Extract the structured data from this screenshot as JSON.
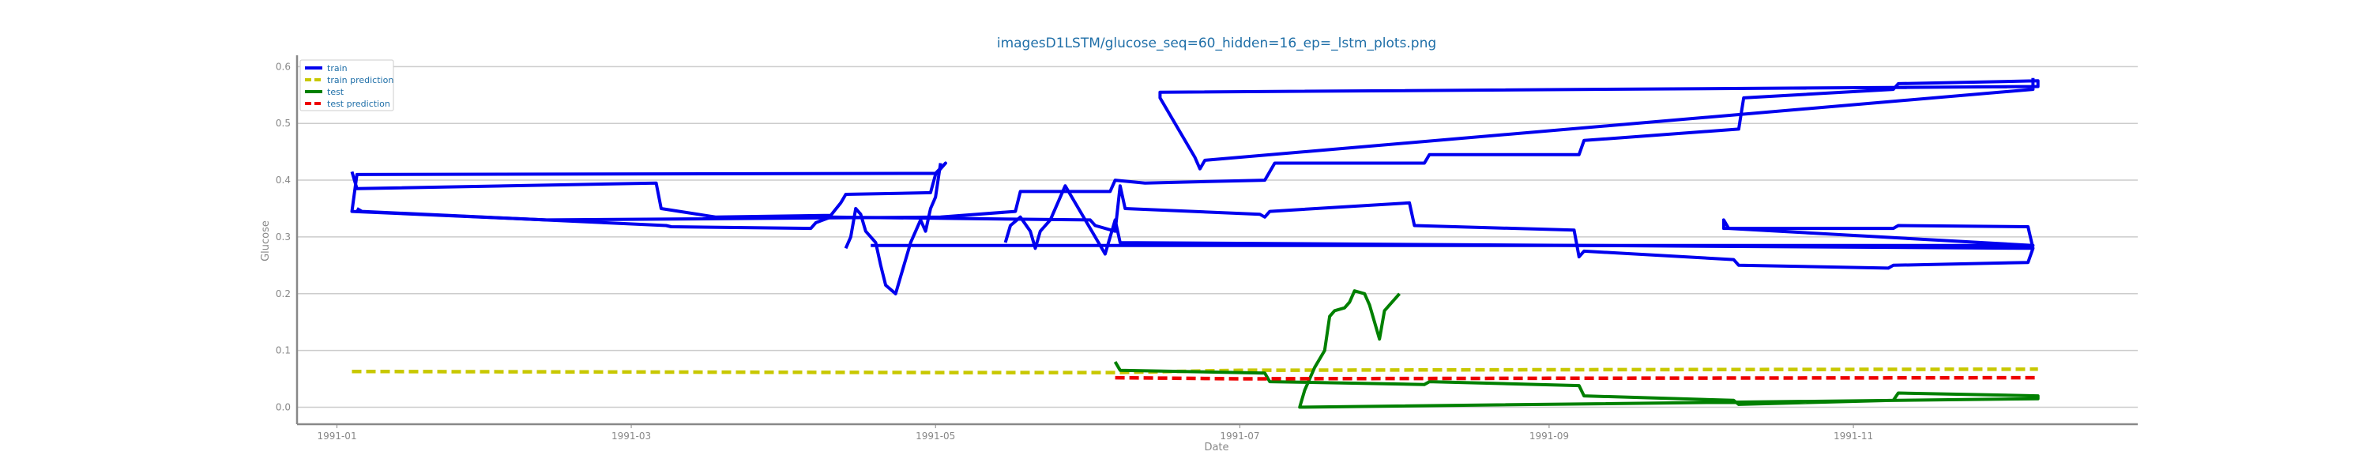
{
  "chart_data": {
    "type": "line",
    "title": "imagesD1LSTM/glucose_seq=60_hidden=16_ep=_lstm_plots.png",
    "xlabel": "Date",
    "ylabel": "Glucose",
    "xlim": [
      "1990-12-24",
      "1991-12-28"
    ],
    "ylim": [
      -0.03,
      0.62
    ],
    "xticks": [
      "1991-01-01",
      "1991-03-01",
      "1991-05-01",
      "1991-07-01",
      "1991-09-01",
      "1991-11-01"
    ],
    "xtick_labels": [
      "1991-01",
      "1991-03",
      "1991-05",
      "1991-07",
      "1991-09",
      "1991-11"
    ],
    "yticks": [
      0.0,
      0.1,
      0.2,
      0.3,
      0.4,
      0.5,
      0.6
    ],
    "ytick_labels": [
      "0.0",
      "0.1",
      "0.2",
      "0.3",
      "0.4",
      "0.5",
      "0.6"
    ],
    "grid": "horizontal",
    "legend_position": "top-left",
    "series": [
      {
        "name": "train",
        "color": "#0000ee",
        "style": "solid",
        "points": [
          [
            "1991-01-04",
            0.415
          ],
          [
            "1991-01-05",
            0.385
          ],
          [
            "1991-03-06",
            0.395
          ],
          [
            "1991-03-07",
            0.35
          ],
          [
            "1991-03-18",
            0.335
          ],
          [
            "1991-04-10",
            0.338
          ],
          [
            "1991-04-12",
            0.36
          ],
          [
            "1991-04-13",
            0.375
          ],
          [
            "1991-04-30",
            0.378
          ],
          [
            "1991-05-01",
            0.41
          ],
          [
            "1991-05-03",
            0.43
          ],
          [
            "1991-05-01",
            0.412
          ],
          [
            "1991-01-05",
            0.41
          ],
          [
            "1991-01-04",
            0.345
          ],
          [
            "1991-02-12",
            0.33
          ],
          [
            "1991-05-02",
            0.335
          ],
          [
            "1991-05-17",
            0.345
          ],
          [
            "1991-05-18",
            0.38
          ],
          [
            "1991-06-05",
            0.38
          ],
          [
            "1991-06-06",
            0.4
          ],
          [
            "1991-06-12",
            0.395
          ],
          [
            "1991-07-06",
            0.4
          ],
          [
            "1991-07-08",
            0.43
          ],
          [
            "1991-08-07",
            0.43
          ],
          [
            "1991-08-08",
            0.445
          ],
          [
            "1991-09-07",
            0.445
          ],
          [
            "1991-09-08",
            0.47
          ],
          [
            "1991-10-09",
            0.49
          ],
          [
            "1991-10-10",
            0.545
          ],
          [
            "1991-11-09",
            0.56
          ],
          [
            "1991-11-10",
            0.57
          ],
          [
            "1991-12-08",
            0.575
          ],
          [
            "1991-12-08",
            0.565
          ],
          [
            "1991-06-15",
            0.555
          ],
          [
            "1991-06-15",
            0.545
          ],
          [
            "1991-06-22",
            0.44
          ],
          [
            "1991-06-23",
            0.42
          ],
          [
            "1991-06-24",
            0.435
          ],
          [
            "1991-12-07",
            0.56
          ],
          [
            "1991-12-07",
            0.58
          ]
        ]
      },
      {
        "name": "",
        "color": "#0000ee",
        "style": "solid",
        "points": [
          [
            "1991-01-05",
            0.35
          ],
          [
            "1991-01-06",
            0.345
          ],
          [
            "1991-03-08",
            0.32
          ],
          [
            "1991-03-09",
            0.318
          ],
          [
            "1991-04-06",
            0.315
          ],
          [
            "1991-04-07",
            0.325
          ],
          [
            "1991-04-10",
            0.335
          ],
          [
            "1991-06-01",
            0.33
          ],
          [
            "1991-06-02",
            0.32
          ],
          [
            "1991-06-06",
            0.31
          ],
          [
            "1991-06-07",
            0.39
          ],
          [
            "1991-06-08",
            0.35
          ],
          [
            "1991-07-05",
            0.34
          ],
          [
            "1991-07-06",
            0.335
          ],
          [
            "1991-07-07",
            0.345
          ],
          [
            "1991-08-04",
            0.36
          ],
          [
            "1991-08-05",
            0.32
          ],
          [
            "1991-09-06",
            0.312
          ],
          [
            "1991-09-07",
            0.265
          ],
          [
            "1991-09-08",
            0.275
          ],
          [
            "1991-10-08",
            0.26
          ],
          [
            "1991-10-09",
            0.25
          ],
          [
            "1991-11-08",
            0.245
          ],
          [
            "1991-11-09",
            0.25
          ],
          [
            "1991-12-06",
            0.255
          ],
          [
            "1991-12-07",
            0.28
          ],
          [
            "1991-12-06",
            0.318
          ],
          [
            "1991-11-10",
            0.32
          ],
          [
            "1991-11-09",
            0.315
          ],
          [
            "1991-10-06",
            0.315
          ],
          [
            "1991-10-06",
            0.33
          ],
          [
            "1991-10-07",
            0.315
          ],
          [
            "1991-12-07",
            0.285
          ],
          [
            "1991-04-18",
            0.285
          ]
        ]
      },
      {
        "name": "",
        "color": "#0000ee",
        "style": "solid",
        "points": [
          [
            "1991-04-13",
            0.28
          ],
          [
            "1991-04-14",
            0.3
          ],
          [
            "1991-04-15",
            0.35
          ],
          [
            "1991-04-16",
            0.34
          ],
          [
            "1991-04-17",
            0.31
          ],
          [
            "1991-04-19",
            0.29
          ],
          [
            "1991-04-20",
            0.25
          ],
          [
            "1991-04-21",
            0.215
          ],
          [
            "1991-04-23",
            0.2
          ],
          [
            "1991-04-24",
            0.23
          ],
          [
            "1991-04-26",
            0.29
          ],
          [
            "1991-04-28",
            0.33
          ],
          [
            "1991-04-29",
            0.31
          ],
          [
            "1991-04-30",
            0.35
          ],
          [
            "1991-05-01",
            0.37
          ],
          [
            "1991-05-02",
            0.43
          ]
        ]
      },
      {
        "name": "",
        "color": "#0000ee",
        "style": "solid",
        "points": [
          [
            "1991-05-15",
            0.29
          ],
          [
            "1991-05-16",
            0.32
          ],
          [
            "1991-05-18",
            0.335
          ],
          [
            "1991-05-20",
            0.31
          ],
          [
            "1991-05-21",
            0.28
          ],
          [
            "1991-05-22",
            0.31
          ],
          [
            "1991-05-24",
            0.33
          ],
          [
            "1991-05-26",
            0.37
          ],
          [
            "1991-05-27",
            0.39
          ],
          [
            "1991-05-29",
            0.36
          ],
          [
            "1991-05-31",
            0.33
          ],
          [
            "1991-06-02",
            0.3
          ],
          [
            "1991-06-04",
            0.27
          ],
          [
            "1991-06-06",
            0.33
          ],
          [
            "1991-06-07",
            0.29
          ],
          [
            "1991-12-07",
            0.28
          ]
        ]
      },
      {
        "name": "train prediction",
        "color": "#c8c800",
        "style": "dashed",
        "points": [
          [
            "1991-01-04",
            0.063
          ],
          [
            "1991-03-01",
            0.062
          ],
          [
            "1991-05-01",
            0.061
          ],
          [
            "1991-06-06",
            0.061
          ],
          [
            "1991-07-01",
            0.065
          ],
          [
            "1991-09-01",
            0.066
          ],
          [
            "1991-12-08",
            0.067
          ]
        ]
      },
      {
        "name": "test",
        "color": "#008000",
        "style": "solid",
        "points": [
          [
            "1991-06-06",
            0.08
          ],
          [
            "1991-06-07",
            0.065
          ],
          [
            "1991-07-06",
            0.06
          ],
          [
            "1991-07-07",
            0.045
          ],
          [
            "1991-08-07",
            0.04
          ],
          [
            "1991-08-08",
            0.045
          ],
          [
            "1991-09-07",
            0.038
          ],
          [
            "1991-09-08",
            0.02
          ],
          [
            "1991-10-08",
            0.012
          ],
          [
            "1991-10-09",
            0.005
          ],
          [
            "1991-11-09",
            0.012
          ],
          [
            "1991-11-10",
            0.025
          ],
          [
            "1991-12-08",
            0.02
          ],
          [
            "1991-12-08",
            0.015
          ],
          [
            "1991-07-13",
            0.0
          ],
          [
            "1991-07-14",
            0.03
          ],
          [
            "1991-07-16",
            0.07
          ],
          [
            "1991-07-18",
            0.1
          ],
          [
            "1991-07-19",
            0.16
          ],
          [
            "1991-07-20",
            0.17
          ],
          [
            "1991-07-22",
            0.175
          ],
          [
            "1991-07-23",
            0.185
          ],
          [
            "1991-07-24",
            0.205
          ],
          [
            "1991-07-26",
            0.2
          ],
          [
            "1991-07-27",
            0.18
          ],
          [
            "1991-07-29",
            0.12
          ],
          [
            "1991-07-30",
            0.17
          ],
          [
            "1991-08-01",
            0.19
          ],
          [
            "1991-08-02",
            0.2
          ]
        ]
      },
      {
        "name": "test prediction",
        "color": "#ee0000",
        "style": "dashed",
        "points": [
          [
            "1991-06-06",
            0.052
          ],
          [
            "1991-07-01",
            0.05
          ],
          [
            "1991-09-01",
            0.051
          ],
          [
            "1991-12-08",
            0.052
          ]
        ]
      }
    ]
  }
}
